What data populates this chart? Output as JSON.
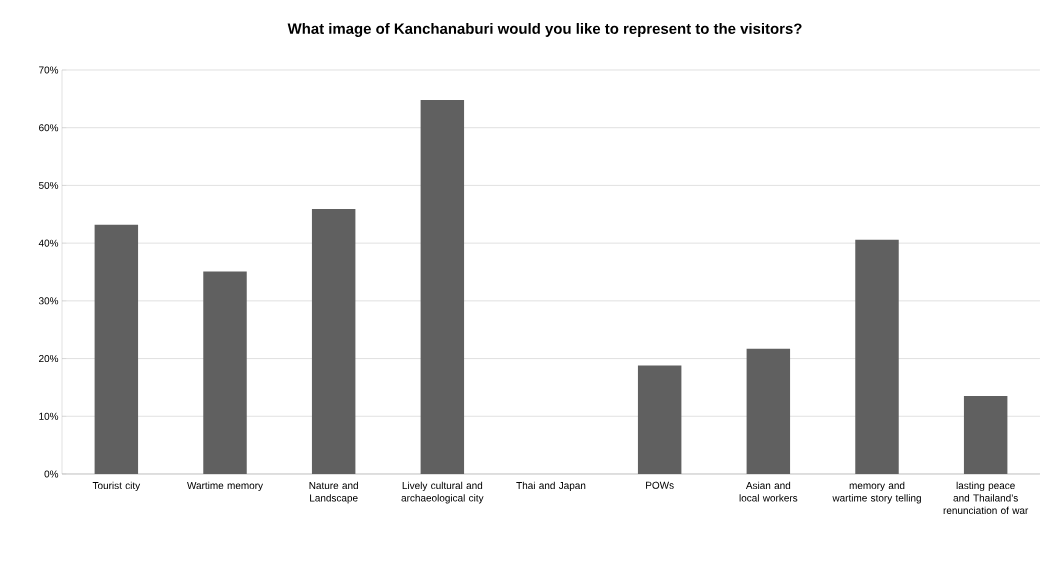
{
  "chart_data": {
    "type": "bar",
    "title": "What image of Kanchanaburi would you like to represent to the visitors?",
    "categories": [
      "Tourist city",
      "Wartime memory",
      "Nature and Landscape",
      "Lively cultural and archaeological city",
      "Thai and Japan",
      "POWs",
      "Asian and local workers",
      "memory and wartime story telling",
      "lasting peace and Thailand’s renunciation of war"
    ],
    "values": [
      43.2,
      35.1,
      45.9,
      64.8,
      0,
      18.8,
      21.7,
      40.6,
      13.5
    ],
    "color": "#606060",
    "ylim": [
      0,
      70
    ],
    "yticks": [
      {
        "value": 0,
        "label": "0%"
      },
      {
        "value": 10,
        "label": "10%"
      },
      {
        "value": 20,
        "label": "20%"
      },
      {
        "value": 30,
        "label": "30%"
      },
      {
        "value": 40,
        "label": "40%"
      },
      {
        "value": 50,
        "label": "50%"
      },
      {
        "value": 60,
        "label": "60%"
      },
      {
        "value": 70,
        "label": "70%"
      }
    ],
    "grid": "y"
  }
}
